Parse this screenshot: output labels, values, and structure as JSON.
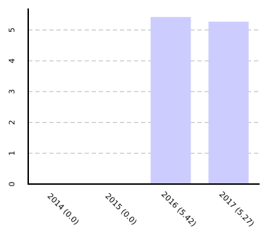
{
  "chart_data": {
    "type": "bar",
    "categories": [
      "2014 (0.0)",
      "2015 (0.0)",
      "2016 (5.42)",
      "2017 (5.27)"
    ],
    "values": [
      0.0,
      0.0,
      5.42,
      5.27
    ],
    "y_ticks": [
      "0",
      "1",
      "2",
      "3",
      "4",
      "5"
    ],
    "ylim": [
      0,
      5.8
    ],
    "grid": true,
    "bar_color": "#ccccff",
    "axis_color": "#000000",
    "grid_color": "#b8b8b8"
  }
}
